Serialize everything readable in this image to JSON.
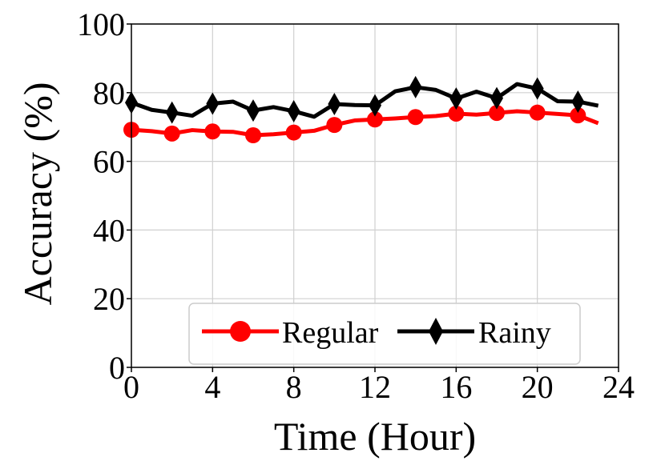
{
  "chart_data": {
    "type": "line",
    "xlabel": "Time (Hour)",
    "ylabel": "Accuracy (%)",
    "xlim": [
      0,
      24
    ],
    "ylim": [
      0,
      100
    ],
    "xticks": [
      0,
      4,
      8,
      12,
      16,
      20,
      24
    ],
    "yticks": [
      0,
      20,
      40,
      60,
      80,
      100
    ],
    "grid": true,
    "legend_position": "bottom-center",
    "x": [
      0,
      1,
      2,
      3,
      4,
      5,
      6,
      7,
      8,
      9,
      10,
      11,
      12,
      13,
      14,
      15,
      16,
      17,
      18,
      19,
      20,
      21,
      22,
      23
    ],
    "series": [
      {
        "name": "Regular",
        "color": "#ff0000",
        "marker": "circle",
        "values": [
          69.2,
          68.8,
          68.1,
          69.1,
          68.7,
          68.6,
          67.6,
          67.9,
          68.4,
          68.9,
          70.6,
          71.9,
          72.2,
          72.5,
          72.9,
          73.2,
          73.9,
          73.6,
          74.1,
          74.6,
          74.2,
          73.8,
          73.4,
          71.1
        ]
      },
      {
        "name": "Rainy",
        "color": "#000000",
        "marker": "diamond",
        "values": [
          77.1,
          75.0,
          74.2,
          73.3,
          76.8,
          77.4,
          74.8,
          75.8,
          74.6,
          73.0,
          76.7,
          76.4,
          76.3,
          80.4,
          81.6,
          80.8,
          78.3,
          80.3,
          78.4,
          82.5,
          81.2,
          77.5,
          77.4,
          76.2
        ]
      }
    ]
  }
}
